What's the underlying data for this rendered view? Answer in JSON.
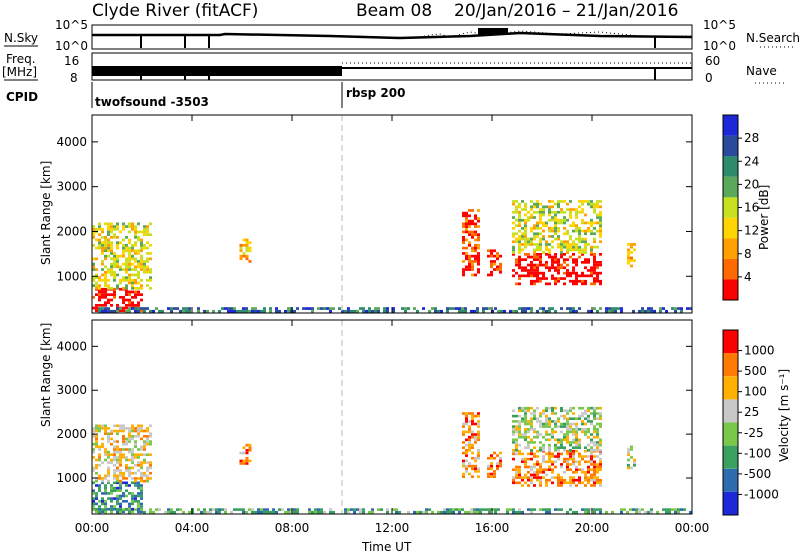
{
  "header": {
    "station": "Clyde River (fitACF)",
    "beam": "Beam 08",
    "date_range": "20/Jan/2016 – 21/Jan/2016"
  },
  "top_panels": {
    "nsky_label": "N.Sky",
    "nsky_ticks": [
      "10^5",
      "10^0"
    ],
    "nsearch_label": "N.Search",
    "nsearch_ticks": [
      "10^5",
      "10^0"
    ],
    "freq_label_1": "Freq.",
    "freq_label_2": "[MHz]",
    "freq_ticks": [
      "16",
      "8"
    ],
    "nave_label": "Nave",
    "nave_ticks": [
      "60",
      "0"
    ],
    "cpid_label": "CPID",
    "cpid_segments": [
      {
        "name": "twofsound -3503",
        "start_hour": 0
      },
      {
        "name": "rbsp 200",
        "start_hour": 10
      }
    ]
  },
  "chart_data": [
    {
      "type": "heatmap",
      "name": "power",
      "ylabel": "Slant Range [km]",
      "xlabel": "",
      "xlim": [
        0,
        24
      ],
      "ylim": [
        180,
        4600
      ],
      "x_ticks": [
        "00:00",
        "04:00",
        "08:00",
        "12:00",
        "16:00",
        "20:00",
        "00:00"
      ],
      "y_ticks": [
        1000,
        2000,
        3000,
        4000
      ],
      "colorbar_label": "Power [dB]",
      "colorbar_ticks": [
        "28",
        "24",
        "20",
        "16",
        "12",
        "8",
        "4"
      ],
      "colorbar_colors": [
        "#ff0000",
        "#ff6a00",
        "#ffa000",
        "#ffd400",
        "#c8e020",
        "#5aa85a",
        "#2e8c6c",
        "#2a4a9e",
        "#1e28d8"
      ],
      "regions": [
        {
          "t0": 0.0,
          "t1": 2.0,
          "r0": 200,
          "r1": 700,
          "level": 0
        },
        {
          "t0": 0.0,
          "t1": 2.3,
          "r0": 700,
          "r1": 2200,
          "level": 4
        },
        {
          "t0": 5.9,
          "t1": 6.3,
          "r0": 1300,
          "r1": 1800,
          "level": 3
        },
        {
          "t0": 14.8,
          "t1": 15.4,
          "r0": 1000,
          "r1": 2500,
          "level": 1
        },
        {
          "t0": 15.8,
          "t1": 16.4,
          "r0": 1000,
          "r1": 1600,
          "level": 1
        },
        {
          "t0": 16.8,
          "t1": 20.3,
          "r0": 800,
          "r1": 1500,
          "level": 0
        },
        {
          "t0": 16.8,
          "t1": 20.3,
          "r0": 1500,
          "r1": 2700,
          "level": 4
        },
        {
          "t0": 21.4,
          "t1": 21.7,
          "r0": 1200,
          "r1": 1700,
          "level": 3
        },
        {
          "t0": 0.0,
          "t1": 24.0,
          "r0": 190,
          "r1": 280,
          "level": 7
        }
      ]
    },
    {
      "type": "heatmap",
      "name": "velocity",
      "ylabel": "Slant Range [km]",
      "xlabel": "Time UT",
      "xlim": [
        0,
        24
      ],
      "ylim": [
        180,
        4600
      ],
      "x_ticks": [
        "00:00",
        "04:00",
        "08:00",
        "12:00",
        "16:00",
        "20:00",
        "00:00"
      ],
      "y_ticks": [
        1000,
        2000,
        3000,
        4000
      ],
      "colorbar_label": "Velocity [m s⁻¹]",
      "colorbar_ticks": [
        "1000",
        "500",
        "100",
        "25",
        "-25",
        "-100",
        "-500",
        "-1000"
      ],
      "colorbar_colors": [
        "#1e28d8",
        "#2e6cb0",
        "#3aa060",
        "#7ac84a",
        "#c8c8c8",
        "#ffb000",
        "#ff7a00",
        "#ff0000"
      ],
      "regions": [
        {
          "t0": 0.0,
          "t1": 2.0,
          "r0": 200,
          "r1": 900,
          "level": 2
        },
        {
          "t0": 0.0,
          "t1": 2.3,
          "r0": 900,
          "r1": 2200,
          "level": 5
        },
        {
          "t0": 5.9,
          "t1": 6.3,
          "r0": 1300,
          "r1": 1800,
          "level": 6
        },
        {
          "t0": 14.8,
          "t1": 15.4,
          "r0": 1000,
          "r1": 2500,
          "level": 6
        },
        {
          "t0": 15.8,
          "t1": 16.4,
          "r0": 1000,
          "r1": 1600,
          "level": 6
        },
        {
          "t0": 16.8,
          "t1": 20.3,
          "r0": 800,
          "r1": 1600,
          "level": 6
        },
        {
          "t0": 16.8,
          "t1": 20.3,
          "r0": 1600,
          "r1": 2600,
          "level": 4
        },
        {
          "t0": 21.4,
          "t1": 21.7,
          "r0": 1200,
          "r1": 1700,
          "level": 4
        },
        {
          "t0": 0.0,
          "t1": 24.0,
          "r0": 190,
          "r1": 280,
          "level": 3
        }
      ]
    }
  ]
}
